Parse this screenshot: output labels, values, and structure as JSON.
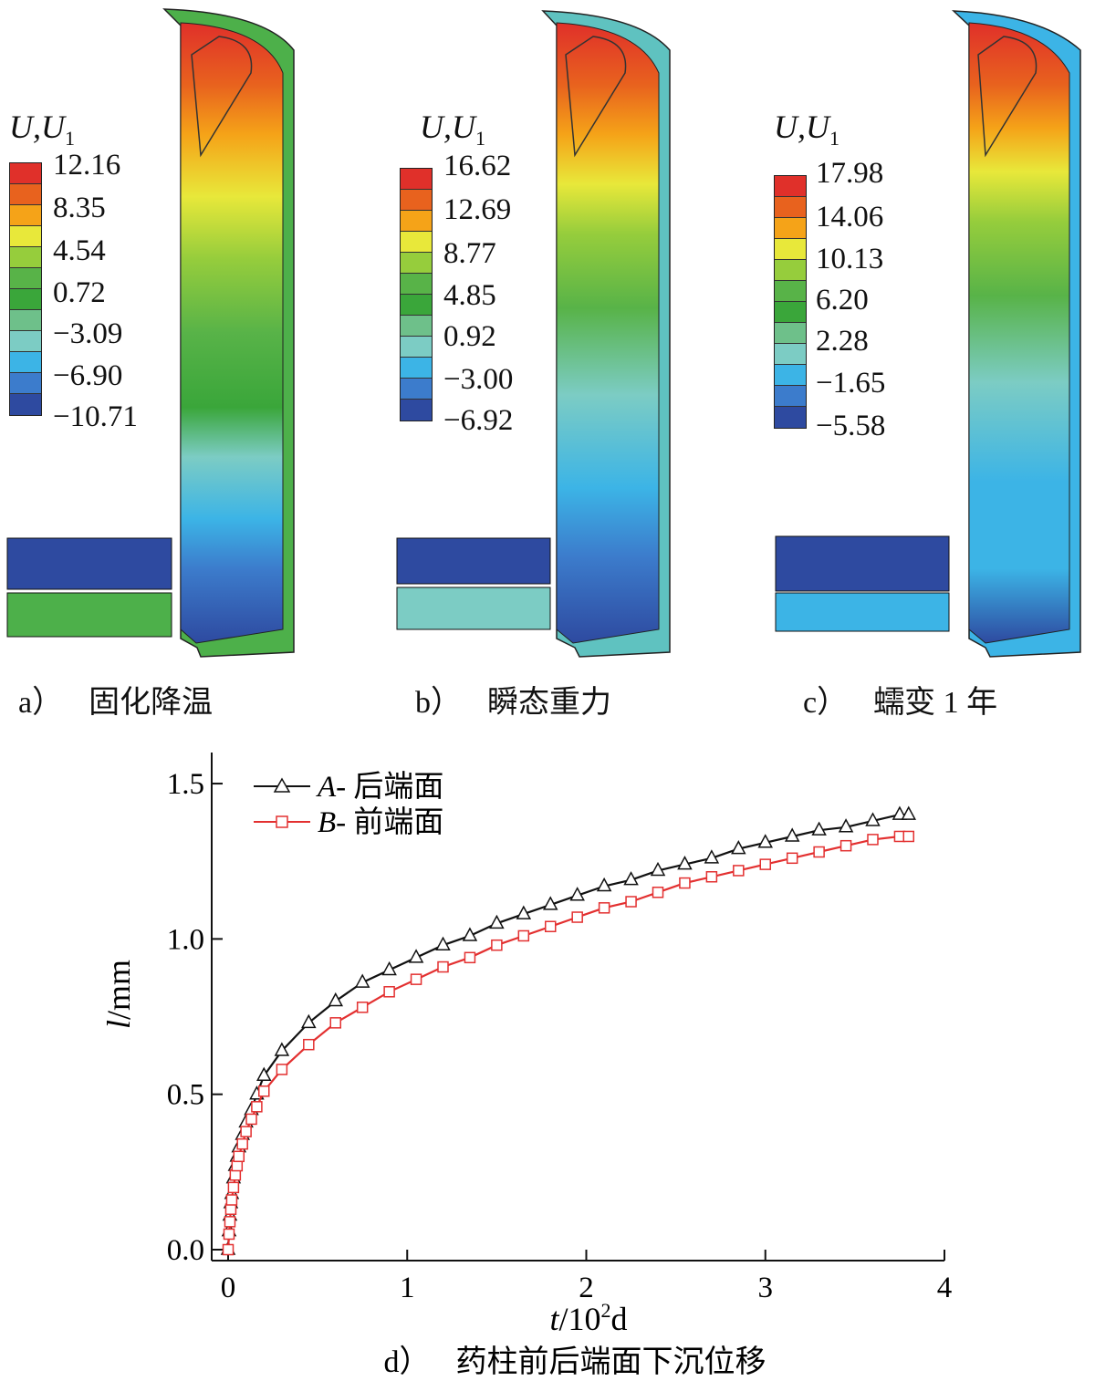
{
  "panels": [
    {
      "legend_title": "U,U",
      "legend_sub": "1",
      "ticks": [
        "12.16",
        "8.35",
        "4.54",
        "0.72",
        "−3.09",
        "−6.90",
        "−10.71"
      ],
      "caption_label": "a）",
      "caption_text": "固化降温"
    },
    {
      "legend_title": "U,U",
      "legend_sub": "1",
      "ticks": [
        "16.62",
        "12.69",
        "8.77",
        "4.85",
        "0.92",
        "−3.00",
        "−6.92"
      ],
      "caption_label": "b）",
      "caption_text": "瞬态重力"
    },
    {
      "legend_title": "U,U",
      "legend_sub": "1",
      "ticks": [
        "17.98",
        "14.06",
        "10.13",
        "6.20",
        "2.28",
        "−1.65",
        "−5.58"
      ],
      "caption_label": "c）",
      "caption_text": "蠕变 1 年"
    }
  ],
  "colormap": [
    "#e0302a",
    "#e8621e",
    "#f5a318",
    "#e8e83a",
    "#96cd3c",
    "#58b348",
    "#3aa63a",
    "#6ec08a",
    "#7cccc4",
    "#3cb4e6",
    "#3c7ccc",
    "#2e4aa0"
  ],
  "colors": {
    "series_a": "#111111",
    "series_b": "#e33030"
  },
  "chart_data": {
    "type": "line",
    "caption_label": "d）",
    "caption_text": "药柱前后端面下沉位移",
    "xlabel": "t",
    "xlabel_unit": "/10",
    "xlabel_sup": "2",
    "xlabel_tail": "d",
    "ylabel": "l",
    "ylabel_unit": "/mm",
    "xlim": [
      0,
      4
    ],
    "ylim": [
      0,
      1.6
    ],
    "xticks": [
      "0",
      "1",
      "2",
      "3",
      "4"
    ],
    "yticks": [
      "0.0",
      "0.5",
      "1.0",
      "1.5"
    ],
    "legend_position": "top-left",
    "series": [
      {
        "name": "A",
        "name_suffix": "- 后端面",
        "marker": "triangle",
        "x": [
          0,
          0.005,
          0.01,
          0.015,
          0.02,
          0.03,
          0.04,
          0.05,
          0.06,
          0.08,
          0.1,
          0.13,
          0.16,
          0.2,
          0.3,
          0.45,
          0.6,
          0.75,
          0.9,
          1.05,
          1.2,
          1.35,
          1.5,
          1.65,
          1.8,
          1.95,
          2.1,
          2.25,
          2.4,
          2.55,
          2.7,
          2.85,
          3.0,
          3.15,
          3.3,
          3.45,
          3.6,
          3.75,
          3.8
        ],
        "y": [
          0,
          0.06,
          0.11,
          0.15,
          0.18,
          0.23,
          0.27,
          0.3,
          0.33,
          0.37,
          0.41,
          0.45,
          0.5,
          0.56,
          0.64,
          0.73,
          0.8,
          0.86,
          0.9,
          0.94,
          0.98,
          1.01,
          1.05,
          1.08,
          1.11,
          1.14,
          1.17,
          1.19,
          1.22,
          1.24,
          1.26,
          1.29,
          1.31,
          1.33,
          1.35,
          1.36,
          1.38,
          1.4,
          1.4
        ]
      },
      {
        "name": "B",
        "name_suffix": "- 前端面",
        "marker": "square",
        "x": [
          0,
          0.005,
          0.01,
          0.015,
          0.02,
          0.03,
          0.04,
          0.05,
          0.06,
          0.08,
          0.1,
          0.13,
          0.16,
          0.2,
          0.3,
          0.45,
          0.6,
          0.75,
          0.9,
          1.05,
          1.2,
          1.35,
          1.5,
          1.65,
          1.8,
          1.95,
          2.1,
          2.25,
          2.4,
          2.55,
          2.7,
          2.85,
          3.0,
          3.15,
          3.3,
          3.45,
          3.6,
          3.75,
          3.8
        ],
        "y": [
          0,
          0.05,
          0.09,
          0.13,
          0.16,
          0.2,
          0.24,
          0.27,
          0.3,
          0.34,
          0.38,
          0.42,
          0.46,
          0.51,
          0.58,
          0.66,
          0.73,
          0.78,
          0.83,
          0.87,
          0.91,
          0.94,
          0.98,
          1.01,
          1.04,
          1.07,
          1.1,
          1.12,
          1.15,
          1.18,
          1.2,
          1.22,
          1.24,
          1.26,
          1.28,
          1.3,
          1.32,
          1.33,
          1.33
        ]
      }
    ]
  }
}
